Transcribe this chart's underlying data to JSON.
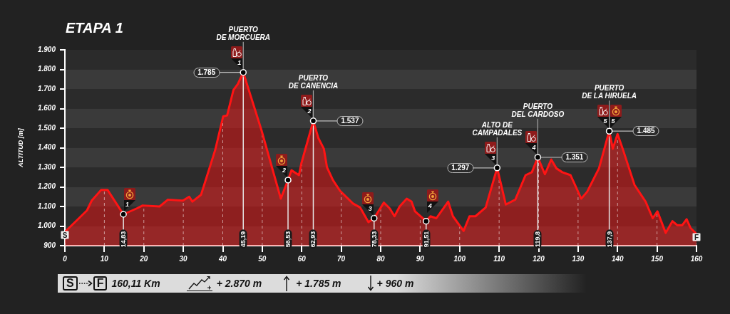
{
  "chart_data": {
    "type": "area",
    "title": "ETAPA 1",
    "ylabel": "ALTITUD [m]",
    "xlim": [
      0,
      160
    ],
    "xticks": [
      0,
      10,
      20,
      30,
      40,
      50,
      60,
      70,
      80,
      90,
      100,
      110,
      120,
      130,
      140,
      150,
      160
    ],
    "ylim": [
      900,
      1900
    ],
    "yticks": [
      900,
      {
        "value": 1000,
        "label": "1.000"
      },
      {
        "value": 1100,
        "label": "1.100"
      },
      {
        "value": 1200,
        "label": "1.200"
      },
      {
        "value": 1300,
        "label": "1.300"
      },
      {
        "value": 1400,
        "label": "1.400"
      },
      {
        "value": 1500,
        "label": "1.500"
      },
      {
        "value": 1600,
        "label": "1.600"
      },
      {
        "value": 1700,
        "label": "1.700"
      },
      {
        "value": 1800,
        "label": "1.800"
      },
      {
        "value": 1900,
        "label": "1.900"
      }
    ],
    "grid": true,
    "series": [
      {
        "color": "#ff1414",
        "x": [
          0,
          5.6,
          6.8,
          9.2,
          10.8,
          14.83,
          18.2,
          19.7,
          24,
          26.1,
          29.9,
          31.5,
          32.3,
          34.5,
          38.1,
          40.1,
          41.1,
          42.7,
          43.8,
          45.19,
          49.8,
          54.7,
          56.53,
          57.4,
          59.3,
          59.9,
          62.93,
          64.2,
          65.6,
          66.4,
          67.9,
          69.7,
          73,
          74.8,
          76.9,
          78.33,
          80.8,
          82.3,
          83.5,
          84.8,
          86.6,
          87.8,
          88.7,
          91.51,
          92.6,
          94.1,
          97.1,
          98.3,
          101,
          102.5,
          104,
          106.6,
          109.5,
          111.7,
          114.1,
          116.7,
          118.3,
          119.8,
          121.6,
          123.2,
          124.5,
          126,
          128.1,
          130.8,
          132.3,
          135.3,
          137.9,
          138.8,
          140,
          141.3,
          144.3,
          147.1,
          148.9,
          150.1,
          152.2,
          153.9,
          155.1,
          156.4,
          157.5,
          158.5,
          160
        ],
        "values": [
          970,
          1080,
          1130,
          1185,
          1185,
          1060,
          1090,
          1105,
          1100,
          1135,
          1130,
          1150,
          1125,
          1160,
          1390,
          1560,
          1565,
          1695,
          1725,
          1785,
          1490,
          1140,
          1235,
          1285,
          1260,
          1320,
          1537,
          1450,
          1395,
          1300,
          1235,
          1180,
          1115,
          1095,
          1020,
          1040,
          1120,
          1090,
          1050,
          1100,
          1140,
          1125,
          1075,
          1025,
          1050,
          1040,
          1125,
          1050,
          975,
          1050,
          1050,
          1095,
          1297,
          1110,
          1135,
          1260,
          1275,
          1351,
          1265,
          1340,
          1295,
          1275,
          1260,
          1140,
          1175,
          1295,
          1485,
          1395,
          1470,
          1395,
          1210,
          1125,
          1040,
          1075,
          965,
          1025,
          1005,
          1005,
          1035,
          990,
          960
        ]
      },
      {
        "type": "scatter",
        "color": "#000000",
        "marker": "circle",
        "x": [
          45.19,
          62.93,
          109.5,
          119.8,
          137.9
        ],
        "values": [
          1785,
          1537,
          1297,
          1351,
          1485
        ],
        "value_labels": [
          "1.785",
          "1.537",
          "1.297",
          "1.351",
          "1.485"
        ]
      },
      {
        "type": "scatter",
        "color": "#000000",
        "marker": "circle",
        "x": [
          14.83,
          56.53,
          78.33,
          91.51,
          137.9
        ],
        "values": [
          1060,
          1235,
          1040,
          1025,
          1485
        ]
      }
    ],
    "ref_lines": [
      {
        "axis": "x",
        "value": 14.83,
        "label": "14,83",
        "color": "#e6e6e6"
      },
      {
        "axis": "x",
        "value": 45.19,
        "label": "45,19",
        "color": "#e6e6e6"
      },
      {
        "axis": "x",
        "value": 56.53,
        "label": "56,53",
        "color": "#e6e6e6"
      },
      {
        "axis": "x",
        "value": 62.93,
        "label": "62,93",
        "color": "#e6e6e6"
      },
      {
        "axis": "x",
        "value": 78.33,
        "label": "78,33",
        "color": "#e6e6e6"
      },
      {
        "axis": "x",
        "value": 91.51,
        "label": "91,51",
        "color": "#e6e6e6"
      },
      {
        "axis": "x",
        "value": 119.8,
        "label": "119,8",
        "color": "#e6e6e6"
      },
      {
        "axis": "x",
        "value": 137.9,
        "label": "137,9",
        "color": "#e6e6e6"
      }
    ],
    "annotations": [
      {
        "text": "PUERTO\nDE MORCUERA",
        "x": 45.19,
        "y": 1785
      },
      {
        "text": "PUERTO\nDE CANENCIA",
        "x": 62.93,
        "y": 1537
      },
      {
        "text": "ALTO DE\nCAMPADALES",
        "x": 109.5,
        "y": 1297
      },
      {
        "text": "PUERTO\nDEL CARDOSO",
        "x": 119.8,
        "y": 1351
      },
      {
        "text": "PUERTO\nDE LA HIRUELA",
        "x": 137.9,
        "y": 1485
      },
      {
        "text": "1",
        "x": 45.19,
        "y": 1785
      },
      {
        "text": "2",
        "x": 62.93,
        "y": 1537
      },
      {
        "text": "3",
        "x": 109.5,
        "y": 1297
      },
      {
        "text": "4",
        "x": 119.8,
        "y": 1351
      },
      {
        "text": "5",
        "x": 137.9,
        "y": 1485
      },
      {
        "text": "1",
        "x": 14.83,
        "y": 1060
      },
      {
        "text": "2",
        "x": 56.53,
        "y": 1235
      },
      {
        "text": "3",
        "x": 78.33,
        "y": 1040
      },
      {
        "text": "4",
        "x": 91.51,
        "y": 1025
      },
      {
        "text": "5",
        "x": 137.9,
        "y": 1485
      },
      {
        "text": "S",
        "x": 0,
        "y": 970
      },
      {
        "text": "F",
        "x": 160,
        "y": 960
      },
      "S",
      "F",
      "160,11 Km",
      "+ 2.870 m",
      "+ 1.785 m",
      "+ 960 m"
    ]
  }
}
